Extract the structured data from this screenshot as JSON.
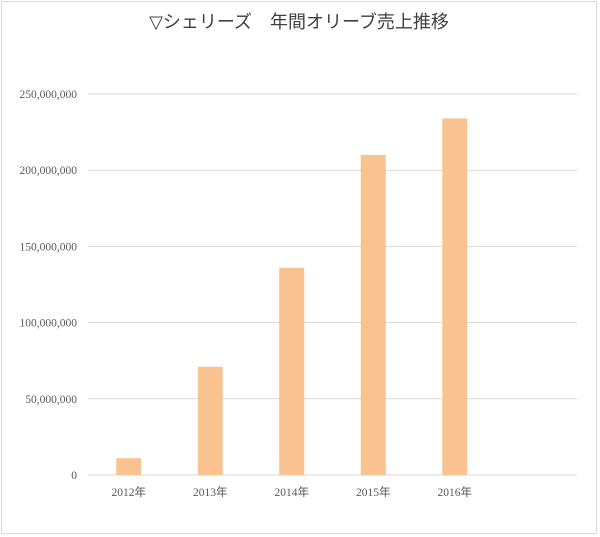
{
  "chart_data": {
    "type": "bar",
    "title": "▽シェリーズ　年間オリーブ売上推移",
    "categories": [
      "2012年",
      "2013年",
      "2014年",
      "2015年",
      "2016年"
    ],
    "values": [
      11000000,
      71000000,
      136000000,
      210000000,
      234000000
    ],
    "series": [
      {
        "values": [
          11000000,
          71000000,
          136000000,
          210000000,
          234000000
        ]
      }
    ],
    "ylim": [
      0,
      250000000
    ],
    "yticks": [
      0,
      50000000,
      100000000,
      150000000,
      200000000,
      250000000
    ],
    "ytick_labels": [
      "0",
      "50,000,000",
      "100,000,000",
      "150,000,000",
      "200,000,000",
      "250,000,000"
    ],
    "grid": true,
    "legend": "none",
    "bar_color": "#f9c291",
    "grid_color": "#d9d9d9",
    "text_color": "#595959"
  }
}
